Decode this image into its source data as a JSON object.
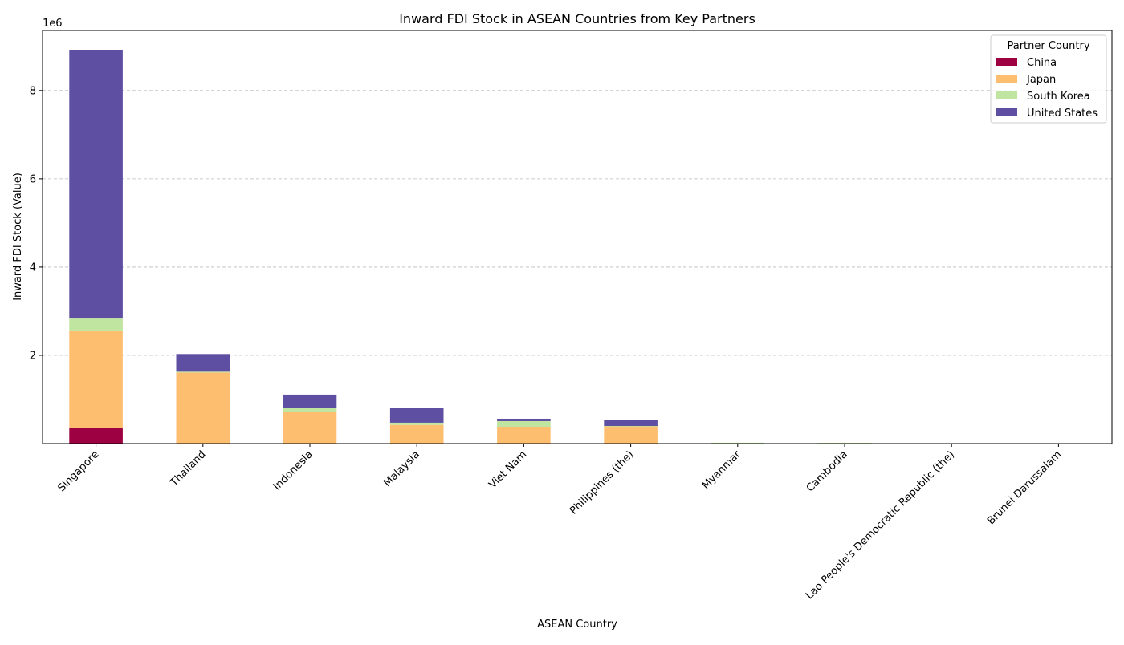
{
  "chart_data": {
    "type": "bar",
    "stacked": true,
    "title": "Inward FDI Stock in ASEAN Countries from Key Partners",
    "xlabel": "ASEAN Country",
    "ylabel": "Inward FDI Stock (Value)",
    "y_offset_label": "1e6",
    "ylim": [
      0,
      9360000
    ],
    "yticks": [
      2000000,
      4000000,
      6000000,
      8000000
    ],
    "ytick_labels": [
      "2",
      "4",
      "6",
      "8"
    ],
    "grid": "y dashed",
    "legend_title": "Partner Country",
    "legend_position": "top-right",
    "categories": [
      "Singapore",
      "Thailand",
      "Indonesia",
      "Malaysia",
      "Viet Nam",
      "Philippines (the)",
      "Myanmar",
      "Cambodia",
      "Lao People's Democratic Republic (the)",
      "Brunei Darussalam"
    ],
    "series": [
      {
        "name": "China",
        "color": "#9e0142",
        "values": [
          364000,
          0,
          0,
          0,
          0,
          0,
          0,
          0,
          0,
          0
        ]
      },
      {
        "name": "Japan",
        "color": "#fdbe6f",
        "values": [
          2200000,
          1610000,
          727000,
          424000,
          382000,
          394000,
          5000,
          5000,
          0,
          0
        ]
      },
      {
        "name": "South Korea",
        "color": "#bfe5a0",
        "values": [
          270000,
          20000,
          73000,
          50000,
          127000,
          6000,
          15000,
          12000,
          0,
          0
        ]
      },
      {
        "name": "United States",
        "color": "#5e4fa2",
        "values": [
          6090000,
          400000,
          310000,
          327000,
          55000,
          145000,
          0,
          0,
          0,
          0
        ]
      }
    ]
  }
}
